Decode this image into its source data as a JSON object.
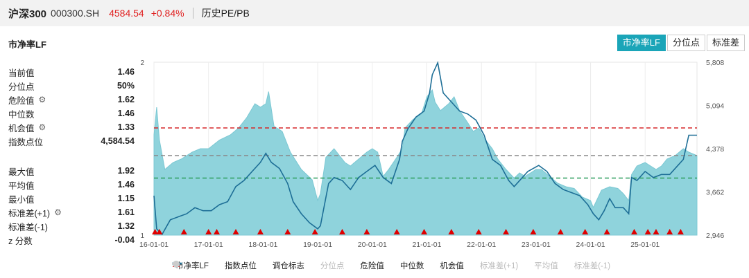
{
  "header": {
    "name": "沪深300",
    "code": "000300.SH",
    "price": "4584.54",
    "change": "+0.84%",
    "tab": "历史PE/PB"
  },
  "metric_title": "市净率LF",
  "buttons": [
    {
      "label": "市净率LF",
      "active": true
    },
    {
      "label": "分位点",
      "active": false
    },
    {
      "label": "标准差",
      "active": false
    }
  ],
  "stats_top": [
    {
      "label": "当前值",
      "value": "1.46",
      "gear": false
    },
    {
      "label": "分位点",
      "value": "50%",
      "gear": false
    },
    {
      "label": "危险值",
      "value": "1.62",
      "gear": true
    },
    {
      "label": "中位数",
      "value": "1.46",
      "gear": false
    },
    {
      "label": "机会值",
      "value": "1.33",
      "gear": true
    },
    {
      "label": "指数点位",
      "value": "4,584.54",
      "gear": false
    }
  ],
  "stats_bottom": [
    {
      "label": "最大值",
      "value": "1.92",
      "gear": false
    },
    {
      "label": "平均值",
      "value": "1.46",
      "gear": false
    },
    {
      "label": "最小值",
      "value": "1.15",
      "gear": false
    },
    {
      "label": "标准差(+1)",
      "value": "1.61",
      "gear": true
    },
    {
      "label": "标准差(-1)",
      "value": "1.32",
      "gear": false
    },
    {
      "label": "z 分数",
      "value": "-0.04",
      "gear": false
    }
  ],
  "legend": [
    {
      "label": "市净率LF",
      "kind": "dot",
      "color": "#7ecfd8",
      "dim": false
    },
    {
      "label": "指数点位",
      "kind": "line",
      "color": "#1d6e96",
      "dim": false
    },
    {
      "label": "调仓标志",
      "kind": "triangle",
      "color": "#e00000",
      "dim": false
    },
    {
      "label": "分位点",
      "kind": "dot",
      "color": "#cccccc",
      "dim": true
    },
    {
      "label": "危险值",
      "kind": "dash",
      "color": "#d62728",
      "dim": false
    },
    {
      "label": "中位数",
      "kind": "dash",
      "color": "#888888",
      "dim": false
    },
    {
      "label": "机会值",
      "kind": "dash",
      "color": "#2a9d5c",
      "dim": false
    },
    {
      "label": "标准差(+1)",
      "kind": "dash",
      "color": "#cccccc",
      "dim": true
    },
    {
      "label": "平均值",
      "kind": "dash",
      "color": "#cccccc",
      "dim": true
    },
    {
      "label": "标准差(-1)",
      "kind": "dash",
      "color": "#cccccc",
      "dim": true
    }
  ],
  "colors": {
    "area": "#8fd3dc",
    "line": "#1d6e96",
    "danger": "#d62728",
    "median": "#888888",
    "opportunity": "#2a9d5c",
    "marker": "#e00000"
  },
  "chart_data": {
    "type": "area",
    "x_ticks": [
      "16-01-01",
      "17-01-01",
      "18-01-01",
      "19-01-01",
      "20-01-01",
      "21-01-01",
      "22-01-01",
      "23-01-01",
      "24-01-01",
      "25-01-01"
    ],
    "x_range": [
      2016.0,
      2025.95
    ],
    "y_left": {
      "ticks": [
        "2",
        "1"
      ],
      "range": [
        1,
        2
      ]
    },
    "y_right": {
      "ticks": [
        "5,808",
        "5,094",
        "4,378",
        "3,662",
        "2,946"
      ],
      "range": [
        2946,
        5808
      ]
    },
    "pb_series": {
      "name": "市净率LF",
      "x": [
        2016.0,
        2016.05,
        2016.1,
        2016.2,
        2016.35,
        2016.5,
        2016.7,
        2016.85,
        2017.0,
        2017.2,
        2017.4,
        2017.55,
        2017.7,
        2017.85,
        2017.95,
        2018.05,
        2018.1,
        2018.2,
        2018.35,
        2018.5,
        2018.7,
        2018.9,
        2019.0,
        2019.05,
        2019.15,
        2019.3,
        2019.4,
        2019.5,
        2019.6,
        2019.75,
        2019.9,
        2020.0,
        2020.1,
        2020.2,
        2020.3,
        2020.45,
        2020.55,
        2020.6,
        2020.75,
        2020.9,
        2021.0,
        2021.1,
        2021.15,
        2021.25,
        2021.4,
        2021.5,
        2021.6,
        2021.75,
        2021.85,
        2021.95,
        2022.05,
        2022.2,
        2022.3,
        2022.45,
        2022.6,
        2022.7,
        2022.8,
        2022.9,
        2023.0,
        2023.1,
        2023.25,
        2023.4,
        2023.55,
        2023.7,
        2023.85,
        2024.0,
        2024.05,
        2024.2,
        2024.35,
        2024.5,
        2024.6,
        2024.7,
        2024.75,
        2024.85,
        2025.0,
        2025.1,
        2025.2,
        2025.3,
        2025.4,
        2025.55,
        2025.7,
        2025.8,
        2025.95
      ],
      "values": [
        1.58,
        1.74,
        1.55,
        1.38,
        1.42,
        1.44,
        1.48,
        1.5,
        1.5,
        1.55,
        1.58,
        1.62,
        1.68,
        1.76,
        1.74,
        1.76,
        1.83,
        1.63,
        1.6,
        1.48,
        1.38,
        1.32,
        1.2,
        1.24,
        1.45,
        1.5,
        1.46,
        1.42,
        1.4,
        1.44,
        1.48,
        1.5,
        1.48,
        1.34,
        1.38,
        1.45,
        1.5,
        1.62,
        1.67,
        1.7,
        1.8,
        1.84,
        1.77,
        1.72,
        1.76,
        1.8,
        1.72,
        1.65,
        1.6,
        1.62,
        1.56,
        1.5,
        1.44,
        1.38,
        1.33,
        1.36,
        1.34,
        1.36,
        1.38,
        1.38,
        1.34,
        1.3,
        1.28,
        1.27,
        1.22,
        1.2,
        1.16,
        1.26,
        1.28,
        1.27,
        1.24,
        1.2,
        1.35,
        1.4,
        1.42,
        1.4,
        1.38,
        1.4,
        1.44,
        1.46,
        1.5,
        1.48,
        1.46
      ]
    },
    "index_series": {
      "name": "指数点位",
      "x": [
        2016.0,
        2016.05,
        2016.15,
        2016.3,
        2016.45,
        2016.6,
        2016.75,
        2016.9,
        2017.05,
        2017.2,
        2017.35,
        2017.5,
        2017.65,
        2017.8,
        2017.95,
        2018.05,
        2018.15,
        2018.3,
        2018.45,
        2018.55,
        2018.7,
        2018.85,
        2019.0,
        2019.05,
        2019.2,
        2019.3,
        2019.45,
        2019.6,
        2019.75,
        2019.9,
        2020.05,
        2020.2,
        2020.35,
        2020.5,
        2020.55,
        2020.65,
        2020.8,
        2020.95,
        2021.05,
        2021.1,
        2021.2,
        2021.3,
        2021.45,
        2021.6,
        2021.75,
        2021.9,
        2022.05,
        2022.2,
        2022.35,
        2022.5,
        2022.6,
        2022.75,
        2022.85,
        2022.95,
        2023.05,
        2023.2,
        2023.35,
        2023.5,
        2023.65,
        2023.8,
        2023.95,
        2024.05,
        2024.15,
        2024.25,
        2024.35,
        2024.45,
        2024.6,
        2024.7,
        2024.75,
        2024.85,
        2025.0,
        2025.15,
        2025.3,
        2025.45,
        2025.6,
        2025.7,
        2025.8,
        2025.95
      ],
      "values": [
        3600,
        3050,
        2960,
        3200,
        3250,
        3300,
        3400,
        3350,
        3350,
        3450,
        3500,
        3750,
        3850,
        4000,
        4150,
        4300,
        4150,
        4050,
        3800,
        3500,
        3300,
        3150,
        3050,
        3100,
        3800,
        3900,
        3850,
        3700,
        3900,
        4000,
        4100,
        3900,
        3800,
        4200,
        4500,
        4700,
        4900,
        5000,
        5300,
        5600,
        5800,
        5300,
        5150,
        5000,
        4950,
        4850,
        4600,
        4200,
        4100,
        3850,
        3750,
        3900,
        4000,
        4050,
        4100,
        4000,
        3800,
        3700,
        3650,
        3600,
        3450,
        3300,
        3200,
        3350,
        3550,
        3400,
        3400,
        3300,
        3900,
        3850,
        4000,
        3900,
        3950,
        3950,
        4100,
        4200,
        4600,
        4600
      ]
    },
    "reference_lines": {
      "danger": 1.62,
      "median": 1.46,
      "opportunity": 1.33
    },
    "markers_x": [
      2016.02,
      2016.1,
      2016.55,
      2017.0,
      2017.15,
      2017.5,
      2017.95,
      2018.45,
      2018.95,
      2019.45,
      2019.9,
      2020.45,
      2020.95,
      2021.45,
      2021.95,
      2022.45,
      2022.95,
      2023.45,
      2023.9,
      2024.3,
      2024.8,
      2025.05,
      2025.2,
      2025.45,
      2025.65
    ]
  }
}
